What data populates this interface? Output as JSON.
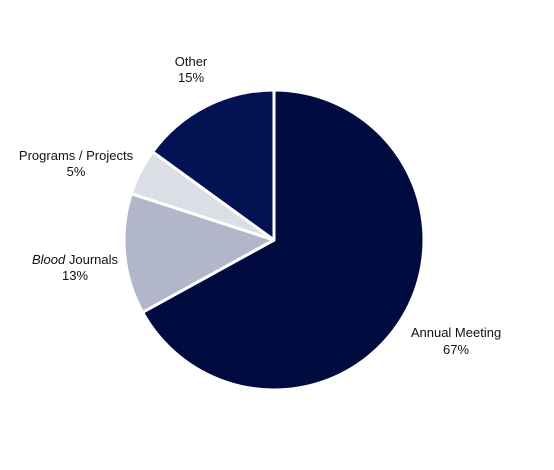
{
  "chart_data": {
    "type": "pie",
    "title": "",
    "slices": [
      {
        "label_prefix": "",
        "label": "Annual Meeting",
        "value": 67,
        "percent_label": "67%",
        "color": "#000c3f"
      },
      {
        "label_prefix": "Blood",
        "label": " Journals",
        "value": 13,
        "percent_label": "13%",
        "color": "#b2b6cb"
      },
      {
        "label_prefix": "",
        "label": "Programs / Projects",
        "value": 5,
        "percent_label": "5%",
        "color": "#dcdee6"
      },
      {
        "label_prefix": "",
        "label": "Other",
        "value": 15,
        "percent_label": "15%",
        "color": "#031252"
      }
    ],
    "start_angle": "12 o'clock",
    "direction": "clockwise",
    "slice_border_color": "#ffffff",
    "legend": "none"
  }
}
